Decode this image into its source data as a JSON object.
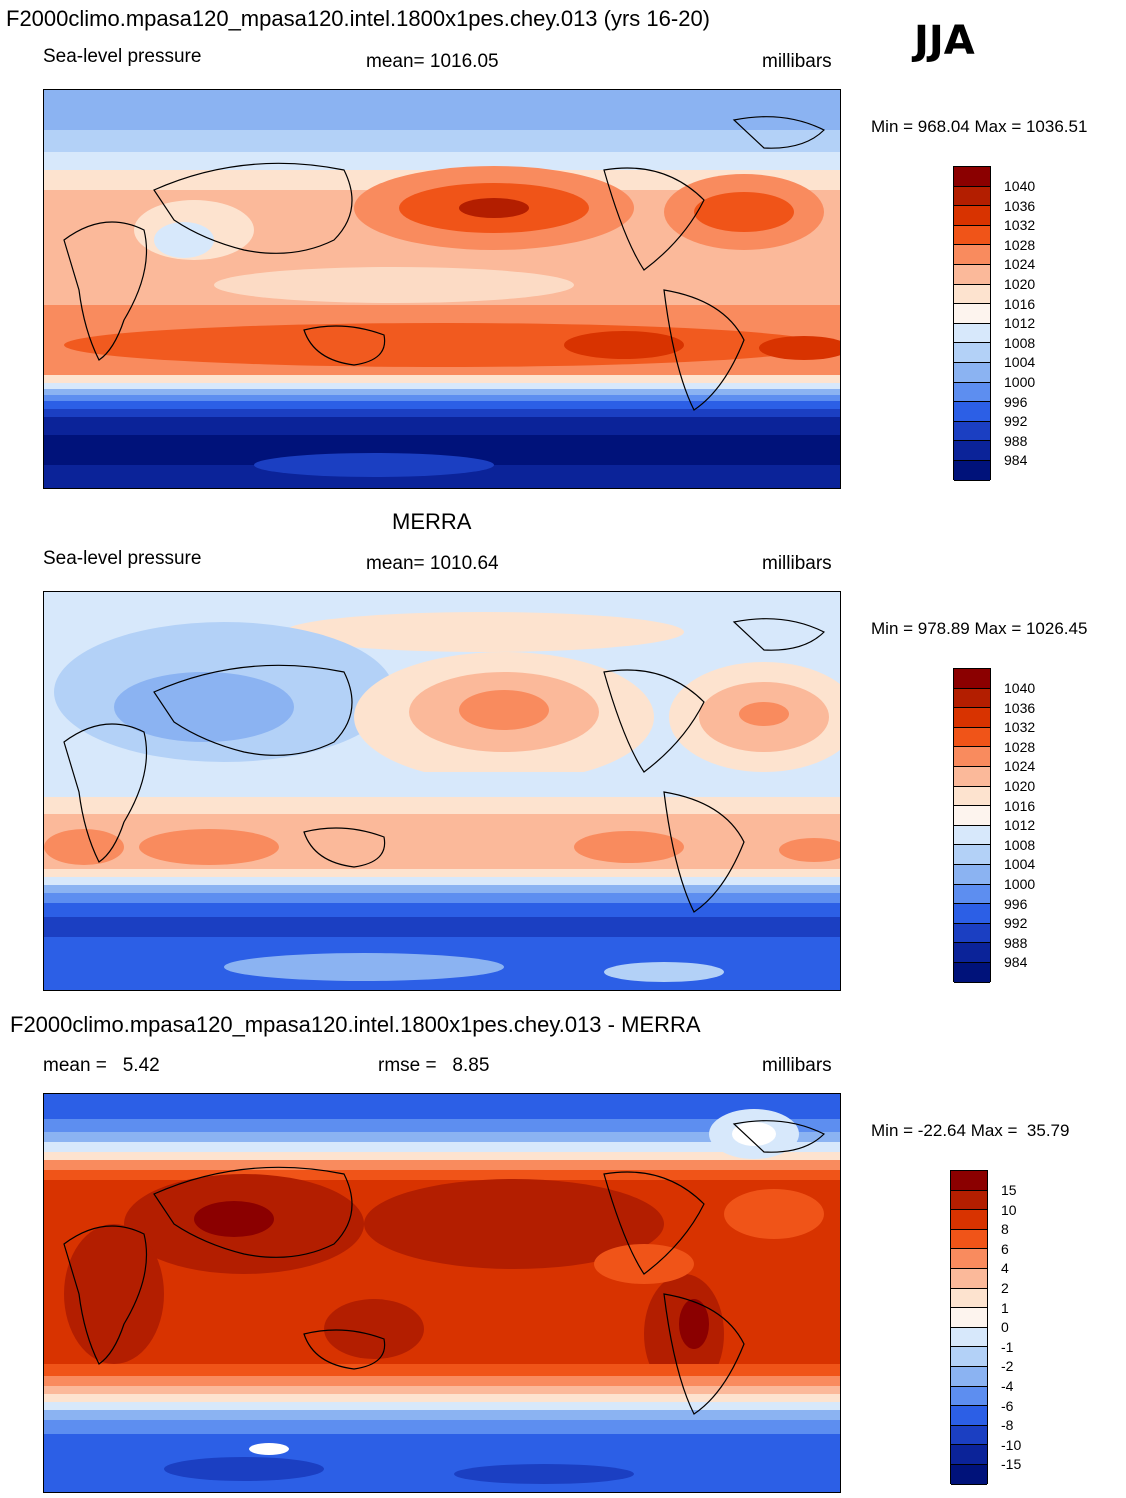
{
  "season": "JJA",
  "panels": [
    {
      "title": "F2000climo.mpasa120_mpasa120.intel.1800x1pes.chey.013 (yrs 16-20)",
      "left_text": "Sea-level pressure",
      "center_text": "mean= 1016.05",
      "right_text": "millibars",
      "minmax": "Min = 968.04 Max = 1036.51",
      "colorbar_labels": [
        "1040",
        "1036",
        "1032",
        "1028",
        "1024",
        "1020",
        "1016",
        "1012",
        "1008",
        "1004",
        "1000",
        "996",
        "992",
        "988",
        "984"
      ],
      "variant": "model"
    },
    {
      "title": "MERRA",
      "left_text": "Sea-level pressure",
      "center_text": "mean= 1010.64",
      "right_text": "millibars",
      "minmax": "Min = 978.89 Max = 1026.45",
      "colorbar_labels": [
        "1040",
        "1036",
        "1032",
        "1028",
        "1024",
        "1020",
        "1016",
        "1012",
        "1008",
        "1004",
        "1000",
        "996",
        "992",
        "988",
        "984"
      ],
      "variant": "obs"
    },
    {
      "title": "F2000climo.mpasa120_mpasa120.intel.1800x1pes.chey.013 - MERRA",
      "left_text": "mean =   5.42",
      "center_text": "rmse =   8.85",
      "right_text": "millibars",
      "minmax": "Min = -22.64 Max =  35.79",
      "colorbar_labels": [
        "15",
        "10",
        "8",
        "6",
        "4",
        "2",
        "1",
        "0",
        "-1",
        "-2",
        "-4",
        "-6",
        "-8",
        "-10",
        "-15"
      ],
      "variant": "diff"
    }
  ],
  "colors": {
    "scale": [
      "#8b0000",
      "#b31e00",
      "#d83300",
      "#f05418",
      "#f98b5e",
      "#fbb99a",
      "#fde3cf",
      "#fdf4ee",
      "#d7e8fb",
      "#b3d1f7",
      "#8bb3f2",
      "#5d8ef0",
      "#2c5fe6",
      "#1b3fc2",
      "#0b2399",
      "#00127a"
    ]
  }
}
